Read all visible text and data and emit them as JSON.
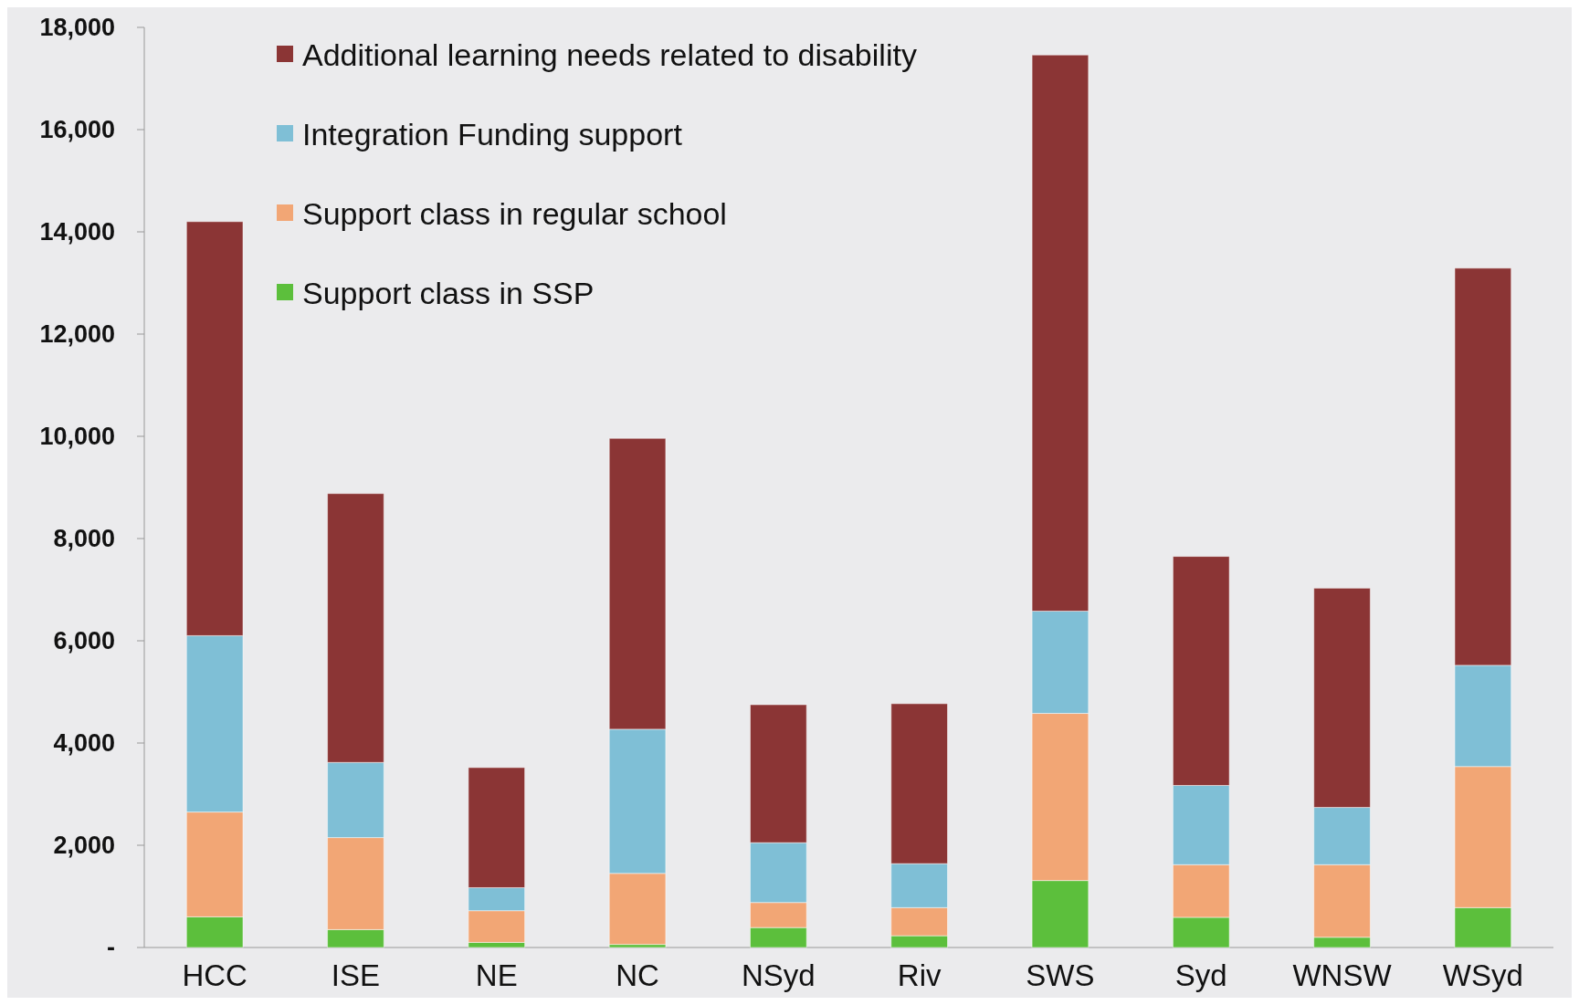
{
  "chart_data": {
    "type": "bar",
    "stacked": true,
    "legend": "top left",
    "grid": false,
    "categories": [
      "HCC",
      "ISE",
      "NE",
      "NC",
      "NSyd",
      "Riv",
      "SWS",
      "Syd",
      "WNSW",
      "WSyd"
    ],
    "ylim": [
      0,
      18000
    ],
    "yticks": [
      {
        "value": 0,
        "label": "-"
      },
      {
        "value": 2000,
        "label": "2,000"
      },
      {
        "value": 4000,
        "label": "4,000"
      },
      {
        "value": 6000,
        "label": "6,000"
      },
      {
        "value": 8000,
        "label": "8,000"
      },
      {
        "value": 10000,
        "label": "10,000"
      },
      {
        "value": 12000,
        "label": "12,000"
      },
      {
        "value": 14000,
        "label": "14,000"
      },
      {
        "value": 16000,
        "label": "16,000"
      },
      {
        "value": 18000,
        "label": "18,000"
      }
    ],
    "series": [
      {
        "name": "Support class in SSP",
        "color": "#5cbf3c",
        "values": [
          600,
          350,
          100,
          60,
          390,
          230,
          1310,
          590,
          200,
          780
        ]
      },
      {
        "name": "Support class in regular school",
        "color": "#f2a675",
        "values": [
          2050,
          1800,
          620,
          1390,
          490,
          550,
          3270,
          1030,
          1420,
          2760
        ]
      },
      {
        "name": "Integration Funding support",
        "color": "#7fbfd6",
        "values": [
          3450,
          1470,
          450,
          2820,
          1170,
          860,
          2000,
          1550,
          1120,
          1980
        ]
      },
      {
        "name": "Additional learning needs related to disability",
        "color": "#8b3535",
        "values": [
          8100,
          5260,
          2350,
          5690,
          2700,
          3130,
          10880,
          4480,
          4290,
          7770
        ]
      }
    ]
  }
}
